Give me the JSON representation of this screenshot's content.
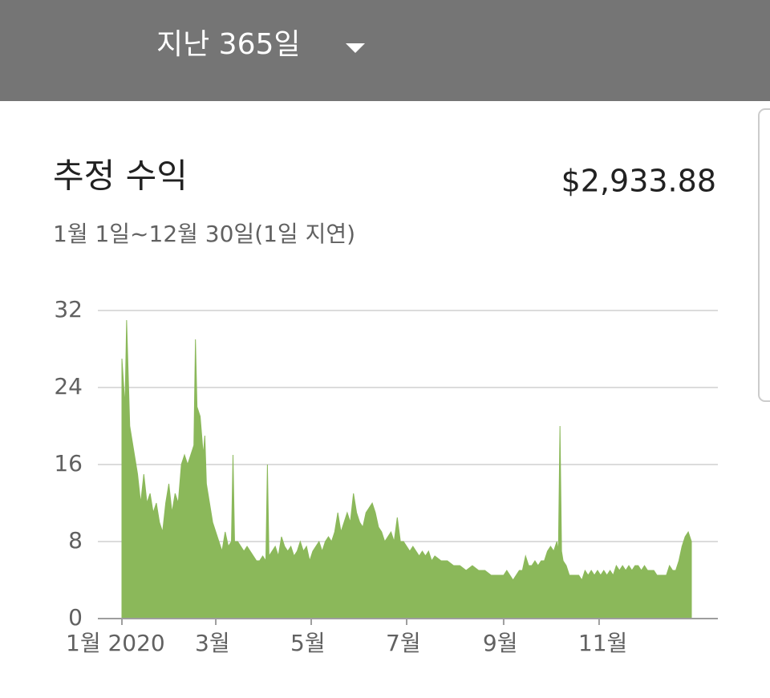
{
  "header": {
    "range": "지난 365일"
  },
  "card": {
    "title": "추정 수익",
    "total": "$2,933.88",
    "subtitle": "1월 1일~12월 30일(1일 지연)"
  },
  "chart_data": {
    "type": "area",
    "color": "#8bb85a",
    "grid": true,
    "xlim": [
      0,
      364
    ],
    "ylim": [
      0,
      32
    ],
    "yticks": [
      0,
      8,
      16,
      24,
      32
    ],
    "xticks": [
      {
        "value": 0,
        "label": "1월 2020"
      },
      {
        "value": 60,
        "label": "3월"
      },
      {
        "value": 121,
        "label": "5월"
      },
      {
        "value": 182,
        "label": "7월"
      },
      {
        "value": 244,
        "label": "9월"
      },
      {
        "value": 305,
        "label": "11월"
      }
    ],
    "x": [
      0,
      2,
      3,
      5,
      8,
      10,
      12,
      14,
      16,
      18,
      20,
      22,
      24,
      26,
      28,
      30,
      32,
      34,
      36,
      38,
      40,
      42,
      44,
      46,
      47,
      48,
      50,
      52,
      53,
      54,
      56,
      58,
      60,
      62,
      64,
      66,
      68,
      70,
      71,
      72,
      74,
      76,
      78,
      80,
      82,
      84,
      86,
      88,
      90,
      92,
      93,
      94,
      96,
      98,
      100,
      102,
      104,
      106,
      108,
      110,
      112,
      114,
      116,
      118,
      120,
      122,
      124,
      126,
      128,
      130,
      132,
      134,
      136,
      138,
      140,
      142,
      144,
      146,
      148,
      150,
      152,
      154,
      156,
      158,
      160,
      162,
      164,
      166,
      168,
      170,
      172,
      174,
      176,
      178,
      180,
      182,
      184,
      186,
      188,
      190,
      192,
      194,
      196,
      198,
      200,
      204,
      208,
      212,
      216,
      220,
      224,
      228,
      232,
      236,
      240,
      244,
      246,
      248,
      250,
      252,
      254,
      256,
      258,
      260,
      262,
      264,
      266,
      268,
      270,
      272,
      274,
      276,
      278,
      279,
      280,
      281,
      282,
      284,
      286,
      288,
      290,
      292,
      294,
      296,
      298,
      300,
      302,
      304,
      306,
      308,
      310,
      312,
      314,
      316,
      318,
      320,
      322,
      324,
      326,
      328,
      330,
      332,
      334,
      336,
      338,
      340,
      342,
      344,
      346,
      348,
      350,
      352,
      354,
      356,
      358,
      360,
      362,
      364
    ],
    "values": [
      27,
      22,
      31,
      20,
      17,
      15,
      12,
      15,
      12,
      13,
      11,
      12,
      10,
      9,
      12,
      14,
      11,
      13,
      12,
      16,
      17,
      16,
      17,
      18,
      29,
      22,
      21,
      17,
      19,
      14,
      12,
      10,
      9,
      8,
      7,
      9,
      7.5,
      8,
      17,
      8,
      8,
      7.5,
      7,
      7.5,
      7,
      6.5,
      6,
      6,
      6.5,
      6,
      16,
      6.5,
      7,
      7.5,
      6.5,
      8.5,
      7.5,
      7,
      7.5,
      6.5,
      7,
      8,
      7,
      7.5,
      6,
      7,
      7.5,
      8,
      7,
      8,
      8.5,
      8,
      9,
      11,
      9,
      10,
      11,
      10,
      13,
      11,
      10,
      9.5,
      11,
      11.5,
      12,
      11,
      9.5,
      9,
      8,
      8.5,
      9,
      8,
      10.5,
      8,
      8,
      7.5,
      7,
      7.5,
      7,
      6.5,
      7,
      6.5,
      7,
      6,
      6.5,
      6,
      6,
      5.5,
      5.5,
      5,
      5.5,
      5,
      5,
      4.5,
      4.5,
      4.5,
      5,
      4.5,
      4,
      4.5,
      5,
      5,
      6.5,
      5.5,
      5.5,
      6,
      5.5,
      6,
      6,
      7,
      7.5,
      7,
      8,
      7,
      20,
      7,
      6,
      5.5,
      4.5,
      4.5,
      4.5,
      4.5,
      4,
      5,
      4.5,
      5,
      4.5,
      5,
      4.5,
      5,
      4.5,
      5,
      4.5,
      5.5,
      5,
      5.5,
      5,
      5.5,
      5,
      5.5,
      5.5,
      5,
      5.5,
      5,
      5,
      5,
      4.5,
      4.5,
      4.5,
      4.5,
      5.5,
      5,
      5,
      6,
      7.5,
      8.5,
      9,
      8
    ]
  }
}
